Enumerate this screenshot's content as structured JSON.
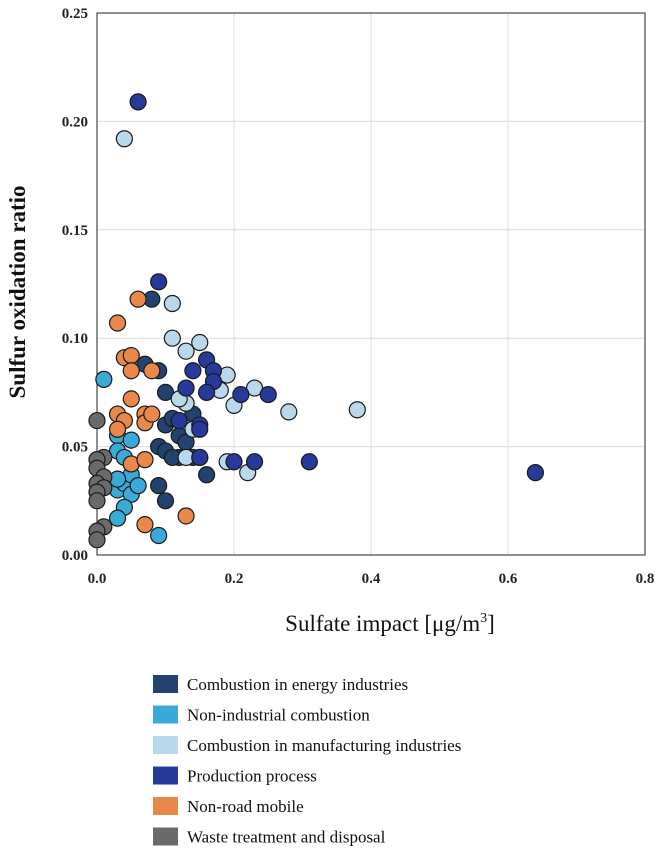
{
  "chart_data": {
    "type": "scatter",
    "xlabel": "Sulfate impact [μg/m",
    "xlabel_sup": "3",
    "xlabel_end": "]",
    "ylabel": "Sulfur oxidation ratio",
    "xlim": [
      0.0,
      0.8
    ],
    "ylim": [
      0.0,
      0.25
    ],
    "x_ticks": [
      "0.0",
      "0.2",
      "0.4",
      "0.6",
      "0.8"
    ],
    "y_ticks": [
      "0.00",
      "0.05",
      "0.10",
      "0.15",
      "0.20",
      "0.25"
    ],
    "grid": true,
    "legend_position": "bottom",
    "series": [
      {
        "name": "Combustion in energy industries",
        "color": "#22436e",
        "points": [
          [
            0.07,
            0.088
          ],
          [
            0.09,
            0.085
          ],
          [
            0.1,
            0.075
          ],
          [
            0.1,
            0.06
          ],
          [
            0.11,
            0.063
          ],
          [
            0.12,
            0.055
          ],
          [
            0.13,
            0.052
          ],
          [
            0.14,
            0.045
          ],
          [
            0.15,
            0.045
          ],
          [
            0.12,
            0.045
          ],
          [
            0.16,
            0.037
          ],
          [
            0.09,
            0.05
          ],
          [
            0.1,
            0.048
          ],
          [
            0.11,
            0.045
          ],
          [
            0.09,
            0.032
          ],
          [
            0.1,
            0.025
          ],
          [
            0.08,
            0.118
          ],
          [
            0.13,
            0.07
          ],
          [
            0.14,
            0.065
          ]
        ]
      },
      {
        "name": "Non-industrial combustion",
        "color": "#3aaad8",
        "points": [
          [
            0.01,
            0.081
          ],
          [
            0.03,
            0.055
          ],
          [
            0.03,
            0.048
          ],
          [
            0.05,
            0.053
          ],
          [
            0.04,
            0.045
          ],
          [
            0.03,
            0.03
          ],
          [
            0.04,
            0.033
          ],
          [
            0.05,
            0.037
          ],
          [
            0.05,
            0.028
          ],
          [
            0.04,
            0.022
          ],
          [
            0.03,
            0.017
          ],
          [
            0.06,
            0.032
          ],
          [
            0.09,
            0.009
          ],
          [
            0.03,
            0.035
          ]
        ]
      },
      {
        "name": "Combustion in manufacturing industries",
        "color": "#b9d8ec",
        "points": [
          [
            0.04,
            0.192
          ],
          [
            0.11,
            0.116
          ],
          [
            0.11,
            0.1
          ],
          [
            0.13,
            0.094
          ],
          [
            0.15,
            0.098
          ],
          [
            0.19,
            0.083
          ],
          [
            0.2,
            0.069
          ],
          [
            0.18,
            0.076
          ],
          [
            0.23,
            0.077
          ],
          [
            0.28,
            0.066
          ],
          [
            0.38,
            0.067
          ],
          [
            0.13,
            0.07
          ],
          [
            0.12,
            0.072
          ],
          [
            0.19,
            0.043
          ],
          [
            0.22,
            0.038
          ],
          [
            0.13,
            0.045
          ],
          [
            0.14,
            0.058
          ]
        ]
      },
      {
        "name": "Production process",
        "color": "#27399a",
        "points": [
          [
            0.06,
            0.209
          ],
          [
            0.09,
            0.126
          ],
          [
            0.16,
            0.09
          ],
          [
            0.14,
            0.085
          ],
          [
            0.17,
            0.085
          ],
          [
            0.17,
            0.08
          ],
          [
            0.13,
            0.077
          ],
          [
            0.16,
            0.075
          ],
          [
            0.21,
            0.074
          ],
          [
            0.25,
            0.074
          ],
          [
            0.15,
            0.06
          ],
          [
            0.15,
            0.058
          ],
          [
            0.2,
            0.043
          ],
          [
            0.23,
            0.043
          ],
          [
            0.31,
            0.043
          ],
          [
            0.64,
            0.038
          ],
          [
            0.12,
            0.062
          ],
          [
            0.15,
            0.045
          ]
        ]
      },
      {
        "name": "Non-road mobile",
        "color": "#e9884a",
        "points": [
          [
            0.03,
            0.107
          ],
          [
            0.06,
            0.118
          ],
          [
            0.04,
            0.091
          ],
          [
            0.05,
            0.092
          ],
          [
            0.05,
            0.085
          ],
          [
            0.08,
            0.085
          ],
          [
            0.03,
            0.065
          ],
          [
            0.05,
            0.072
          ],
          [
            0.04,
            0.062
          ],
          [
            0.07,
            0.065
          ],
          [
            0.07,
            0.061
          ],
          [
            0.08,
            0.065
          ],
          [
            0.03,
            0.058
          ],
          [
            0.05,
            0.042
          ],
          [
            0.07,
            0.044
          ],
          [
            0.07,
            0.014
          ],
          [
            0.13,
            0.018
          ]
        ]
      },
      {
        "name": "Waste treatment and disposal",
        "color": "#6a6a6a",
        "points": [
          [
            0.0,
            0.062
          ],
          [
            0.01,
            0.045
          ],
          [
            0.0,
            0.044
          ],
          [
            0.0,
            0.04
          ],
          [
            0.01,
            0.036
          ],
          [
            0.0,
            0.033
          ],
          [
            0.01,
            0.031
          ],
          [
            0.0,
            0.029
          ],
          [
            0.0,
            0.025
          ],
          [
            0.01,
            0.013
          ],
          [
            0.0,
            0.011
          ],
          [
            0.0,
            0.007
          ]
        ]
      }
    ]
  }
}
